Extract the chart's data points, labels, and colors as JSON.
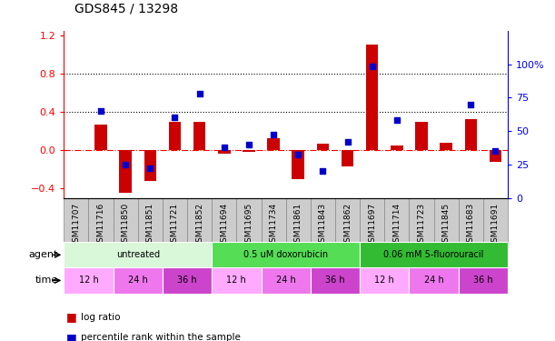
{
  "title": "GDS845 / 13298",
  "samples": [
    "GSM11707",
    "GSM11716",
    "GSM11850",
    "GSM11851",
    "GSM11721",
    "GSM11852",
    "GSM11694",
    "GSM11695",
    "GSM11734",
    "GSM11861",
    "GSM11843",
    "GSM11862",
    "GSM11697",
    "GSM11714",
    "GSM11723",
    "GSM11845",
    "GSM11683",
    "GSM11691"
  ],
  "log_ratio": [
    0.0,
    0.27,
    -0.45,
    -0.32,
    0.3,
    0.3,
    -0.04,
    -0.02,
    0.12,
    -0.3,
    0.07,
    -0.17,
    1.1,
    0.05,
    0.3,
    0.08,
    0.32,
    -0.12
  ],
  "percentile": [
    null,
    65,
    25,
    22,
    60,
    78,
    38,
    40,
    47,
    32,
    20,
    42,
    98,
    58,
    null,
    null,
    70,
    35
  ],
  "bar_color": "#cc0000",
  "dot_color": "#0000cc",
  "ylim_left": [
    -0.5,
    1.25
  ],
  "ylim_right": [
    0,
    125
  ],
  "yticks_left": [
    -0.4,
    0.0,
    0.4,
    0.8,
    1.2
  ],
  "yticks_right": [
    0,
    25,
    50,
    75,
    100
  ],
  "hlines": [
    0.4,
    0.8
  ],
  "groups": [
    {
      "label": "untreated",
      "start": 0,
      "end": 6,
      "color": "#d9f7d9"
    },
    {
      "label": "0.5 uM doxorubicin",
      "start": 6,
      "end": 12,
      "color": "#55dd55"
    },
    {
      "label": "0.06 mM 5-fluorouracil",
      "start": 12,
      "end": 18,
      "color": "#33bb33"
    }
  ],
  "time_groups": [
    {
      "label": "12 h",
      "start": 0,
      "end": 2,
      "color": "#ffaaff"
    },
    {
      "label": "24 h",
      "start": 2,
      "end": 4,
      "color": "#ee77ee"
    },
    {
      "label": "36 h",
      "start": 4,
      "end": 6,
      "color": "#cc44cc"
    },
    {
      "label": "12 h",
      "start": 6,
      "end": 8,
      "color": "#ffaaff"
    },
    {
      "label": "24 h",
      "start": 8,
      "end": 10,
      "color": "#ee77ee"
    },
    {
      "label": "36 h",
      "start": 10,
      "end": 12,
      "color": "#cc44cc"
    },
    {
      "label": "12 h",
      "start": 12,
      "end": 14,
      "color": "#ffaaff"
    },
    {
      "label": "24 h",
      "start": 14,
      "end": 16,
      "color": "#ee77ee"
    },
    {
      "label": "36 h",
      "start": 16,
      "end": 18,
      "color": "#cc44cc"
    }
  ],
  "legend_log_ratio": "log ratio",
  "legend_percentile": "percentile rank within the sample",
  "agent_label": "agent",
  "time_label": "time",
  "tick_label_size": 7,
  "bar_width": 0.5,
  "sample_box_color": "#cccccc",
  "sample_box_edge": "#888888"
}
